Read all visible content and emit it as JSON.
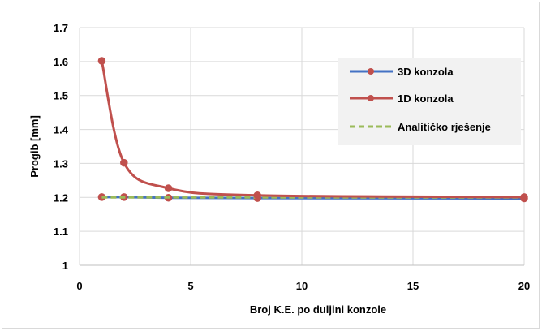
{
  "chart_data": {
    "type": "line",
    "title": "",
    "xlabel": "Broj K.E. po duljini konzole",
    "ylabel": "Progib [mm]",
    "xlim": [
      0,
      20
    ],
    "ylim": [
      1,
      1.7
    ],
    "x_ticks": [
      "0",
      "5",
      "10",
      "15",
      "20"
    ],
    "y_ticks": [
      "1",
      "1.1",
      "1.2",
      "1.3",
      "1.4",
      "1.5",
      "1.6",
      "1.7"
    ],
    "grid": true,
    "legend_position": "top-right",
    "series": [
      {
        "name": "3D konzola",
        "color": "#4472C4",
        "marker_color": "#C0504D",
        "line_style": "solid",
        "markers": true,
        "smooth": false,
        "x": [
          1,
          2,
          4,
          8,
          20
        ],
        "y": [
          1.201,
          1.201,
          1.199,
          1.198,
          1.197
        ]
      },
      {
        "name": "1D konzola",
        "color": "#C0504D",
        "marker_color": "#C0504D",
        "line_style": "solid",
        "markers": true,
        "smooth": true,
        "x": [
          1,
          2,
          4,
          8,
          20
        ],
        "y": [
          1.602,
          1.302,
          1.227,
          1.206,
          1.201
        ]
      },
      {
        "name": "Analitičko rješenje",
        "color": "#9BBB59",
        "line_style": "dashed",
        "markers": false,
        "smooth": false,
        "x": [
          1,
          20
        ],
        "y": [
          1.2,
          1.2
        ]
      }
    ]
  }
}
